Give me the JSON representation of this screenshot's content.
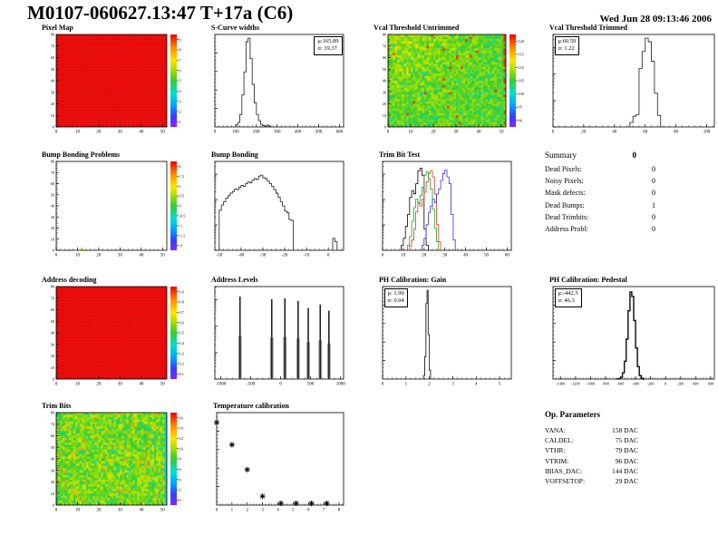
{
  "header": {
    "title": "M0107-060627.13:47 T+17a (C6)",
    "date": "Wed Jun 28 09:13:46 2006"
  },
  "summary": {
    "title": "Summary",
    "total": "0",
    "rows": [
      {
        "label": "Dead Pixels:",
        "value": "0"
      },
      {
        "label": "Noisy Pixels:",
        "value": "0"
      },
      {
        "label": "Mask defects:",
        "value": "0"
      },
      {
        "label": "Dead Bumps:",
        "value": "1"
      },
      {
        "label": "Dead Trimbits:",
        "value": "0"
      },
      {
        "label": "Address Probl:",
        "value": "0"
      }
    ]
  },
  "op_parameters": {
    "title": "Op. Parameters",
    "rows": [
      {
        "label": "VANA:",
        "value": "158 DAC"
      },
      {
        "label": "CALDEL:",
        "value": "75 DAC"
      },
      {
        "label": "VTHR:",
        "value": "79 DAC"
      },
      {
        "label": "VTRIM:",
        "value": "96 DAC"
      },
      {
        "label": "IBIAS_DAC:",
        "value": "144 DAC"
      },
      {
        "label": "VOFFSETOP:",
        "value": "29 DAC"
      }
    ]
  },
  "chart_data": [
    {
      "id": "pixel_map",
      "type": "heatmap",
      "title": "Pixel Map",
      "x": {
        "min": 0,
        "max": 52,
        "ticks": [
          0,
          10,
          20,
          30,
          40,
          50
        ]
      },
      "y": {
        "min": 0,
        "max": 80,
        "ticks": [
          0,
          10,
          20,
          30,
          40,
          50,
          60,
          70,
          80
        ]
      },
      "heatmap": {
        "pattern": "solid",
        "color": "#f90f0f",
        "seed": 1
      },
      "colorbar": {
        "labels": [
          "9",
          "8",
          "7",
          "6",
          "5",
          "4",
          "3",
          "2",
          "1"
        ]
      },
      "note": "uniform red map: all 4160 pixels responding"
    },
    {
      "id": "scurve_widths",
      "type": "hist",
      "title": "S-Curve widths",
      "y_scale": "linear",
      "x": {
        "min": 0,
        "max": 620,
        "ticks": [
          0,
          100,
          200,
          300,
          400,
          500,
          600
        ]
      },
      "series": [
        {
          "name": "scurve width distribution",
          "color": "#333333",
          "width": 0.9,
          "x_start": 100,
          "bin_width": 10,
          "heights": [
            0.02,
            0.05,
            0.14,
            0.36,
            0.62,
            0.96,
            1.0,
            0.77,
            0.48,
            0.27,
            0.14,
            0.07,
            0.03,
            0.015,
            0.01,
            0.02,
            0.01,
            0
          ]
        }
      ],
      "stats": {
        "pos": "tr",
        "lines": [
          "μ:165.89",
          "σ: 19.37"
        ]
      }
    },
    {
      "id": "vcal_untrimmed",
      "type": "heatmap",
      "title": "Vcal Threshold Untrimmed",
      "x": {
        "min": 0,
        "max": 52,
        "ticks": [
          0,
          10,
          20,
          30,
          40,
          50
        ]
      },
      "y": {
        "min": 0,
        "max": 80,
        "ticks": [
          0,
          10,
          20,
          30,
          40,
          50,
          60,
          70,
          80
        ]
      },
      "heatmap": {
        "pattern": "noise",
        "base": 0.52,
        "spread": 0.1,
        "warm_topleft": 0.14,
        "speck": 0.012,
        "speck_value": 0.93,
        "cool_speck": 0.012,
        "cool_value": 0.36,
        "right_col": "red",
        "seed": 5
      },
      "colorbar": {
        "labels": [
          "120",
          "115",
          "110",
          "105",
          "100",
          "95",
          "90"
        ]
      },
      "note": "threshold map ~100 VCal, warmer top-left, red right edge column"
    },
    {
      "id": "vcal_trimmed",
      "type": "hist",
      "title": "Vcal Threshold Trimmed",
      "y_scale": "log",
      "x": {
        "min": 0,
        "max": 105,
        "ticks": [
          0,
          20,
          40,
          60,
          80,
          100
        ]
      },
      "series": [
        {
          "name": "trimmed threshold distribution",
          "color": "#333333",
          "width": 0.9,
          "x_start": 50,
          "bin_width": 2,
          "heights": [
            0.05,
            0.12,
            0.14,
            0.66,
            0.85,
            1.0,
            0.96,
            0.74,
            0.38,
            0.13,
            0
          ]
        }
      ],
      "stats": {
        "pos": "tl",
        "lines": [
          "μ:60.59",
          "σ: 1.22"
        ]
      }
    },
    {
      "id": "bump_problems",
      "type": "heatmap",
      "title": "Bump Bonding Problems",
      "x": {
        "min": 0,
        "max": 52,
        "ticks": [
          0,
          10,
          20,
          30,
          40,
          50
        ]
      },
      "y": {
        "min": 0,
        "max": 80,
        "ticks": [
          0,
          10,
          20,
          30,
          40,
          50,
          60,
          70,
          80
        ]
      },
      "heatmap": {
        "pattern": "empty",
        "dots": [
          {
            "x": 12,
            "y": 1,
            "color": "#ffe400"
          }
        ],
        "seed": 3
      },
      "colorbar": {
        "labels": [
          "2",
          "1.5",
          "1",
          "0.5",
          "0",
          "-0.5",
          "-1",
          "-1.5",
          "-2"
        ]
      },
      "note": "one defective bump near column 12, row 0"
    },
    {
      "id": "bump_bonding",
      "type": "hist",
      "title": "Bump Bonding",
      "y_scale": "log",
      "x": {
        "min": -52,
        "max": 7,
        "ticks": [
          -50,
          -40,
          -30,
          -20,
          -10,
          0
        ]
      },
      "series": [
        {
          "name": "bump bonding test signal",
          "color": "#333333",
          "width": 0.9,
          "x_start": -50,
          "bin_width": 1,
          "heights": [
            0.47,
            0.53,
            0.57,
            0.61,
            0.64,
            0.67,
            0.69,
            0.72,
            0.71,
            0.74,
            0.76,
            0.75,
            0.78,
            0.8,
            0.79,
            0.82,
            0.84,
            0.83,
            0.87,
            0.88,
            0.85,
            0.84,
            0.81,
            0.78,
            0.75,
            0.71,
            0.67,
            0.62,
            0.57,
            0.52,
            0.46,
            0.44,
            0.36,
            0.35,
            0,
            0,
            0,
            0,
            0,
            0,
            0,
            0,
            0,
            0,
            0,
            0,
            0,
            0,
            0,
            0,
            0,
            0,
            0.14,
            0.1,
            0
          ]
        }
      ]
    },
    {
      "id": "trim_bit_test",
      "type": "hist",
      "title": "Trim Bit Test",
      "y_scale": "log",
      "x": {
        "min": 0,
        "max": 62,
        "ticks": [
          0,
          10,
          20,
          30,
          40,
          50,
          60
        ]
      },
      "series": [
        {
          "name": "trim bit 1",
          "color": "#000000",
          "width": 0.8,
          "x_start": 9,
          "bin_width": 1,
          "heights": [
            0.06,
            0.14,
            0.28,
            0.42,
            0.62,
            0.7,
            0.66,
            0.78,
            0.93,
            0.96,
            0.88,
            0.25,
            0.06
          ]
        },
        {
          "name": "trim bit 2",
          "color": "#e83030",
          "width": 0.8,
          "x_start": 13,
          "bin_width": 1,
          "heights": [
            0.05,
            0.12,
            0.25,
            0.45,
            0.55,
            0.52,
            0.6,
            0.68,
            0.8,
            0.9,
            0.93,
            0.86,
            0.66,
            0.3,
            0.1
          ]
        },
        {
          "name": "trim bit 3",
          "color": "#18a818",
          "width": 0.8,
          "x_start": 12,
          "bin_width": 1,
          "heights": [
            0.06,
            0.16,
            0.34,
            0.5,
            0.6,
            0.56,
            0.64,
            0.74,
            0.88,
            0.92,
            0.84,
            0.72,
            0.48,
            0.26,
            0.1
          ]
        },
        {
          "name": "trim bit 4",
          "color": "#3030e8",
          "width": 0.8,
          "x_start": 19,
          "bin_width": 1,
          "heights": [
            0.06,
            0.14,
            0.3,
            0.44,
            0.52,
            0.6,
            0.56,
            0.66,
            0.72,
            0.82,
            0.9,
            0.94,
            0.86,
            0.78,
            0.42,
            0.12
          ]
        }
      ]
    },
    {
      "id": "address_decoding",
      "type": "heatmap",
      "title": "Address decoding",
      "x": {
        "min": 0,
        "max": 52,
        "ticks": [
          0,
          10,
          20,
          30,
          40,
          50
        ]
      },
      "y": {
        "min": 0,
        "max": 80,
        "ticks": [
          0,
          10,
          20,
          30,
          40,
          50,
          60,
          70,
          80
        ]
      },
      "heatmap": {
        "pattern": "solid",
        "color": "#f90f0f",
        "seed": 2
      },
      "colorbar": {
        "labels": [
          "0.9",
          "0.8",
          "0.7",
          "0.6",
          "0.5",
          "0.4",
          "0.3",
          "0.2",
          "0.1"
        ]
      },
      "note": "uniform red map: all pixel addresses decoded correctly"
    },
    {
      "id": "address_levels",
      "type": "spikes",
      "title": "Address Levels",
      "y_scale": "log",
      "x": {
        "min": -1100,
        "max": 1050,
        "ticks": [
          -1000,
          -500,
          0,
          500,
          1000
        ]
      },
      "spikes": [
        {
          "x": -680,
          "h": 0.93
        },
        {
          "x": -150,
          "h": 0.9
        },
        {
          "x": 70,
          "h": 0.91
        },
        {
          "x": 290,
          "h": 0.88
        },
        {
          "x": 460,
          "h": 0.8
        },
        {
          "x": 660,
          "h": 0.84
        },
        {
          "x": 805,
          "h": 0.77
        }
      ],
      "note": "ultrablack level plus six well separated address levels"
    },
    {
      "id": "ph_gain",
      "type": "hist",
      "title": "PH Calibration: Gain",
      "y_scale": "linear",
      "x": {
        "min": 0,
        "max": 5.5,
        "ticks": [
          0,
          1,
          2,
          3,
          4,
          5
        ]
      },
      "series": [
        {
          "name": "gain distribution",
          "color": "#333333",
          "width": 1.0,
          "x_start": 1.75,
          "bin_width": 0.05,
          "heights": [
            0.04,
            0.25,
            0.85,
            1.0,
            0.5,
            0.1,
            0
          ]
        }
      ],
      "stats": {
        "pos": "tl",
        "lines": [
          "μ: 1.90",
          "σ: 0.04"
        ]
      }
    },
    {
      "id": "ph_pedestal",
      "type": "hist",
      "title": "PH Calibration: Pedestal",
      "y_scale": "linear",
      "x": {
        "min": -1500,
        "max": 650,
        "ticks": [
          -1400,
          -1200,
          -1000,
          -800,
          -600,
          -400,
          -200,
          0,
          200,
          400,
          600
        ]
      },
      "series": [
        {
          "name": "pedestal distribution",
          "color": "#1a1a1a",
          "width": 1.5,
          "x_start": -650,
          "bin_width": 25,
          "heights": [
            0.001,
            0.004,
            0.02,
            0.07,
            0.2,
            0.45,
            0.77,
            0.98,
            0.93,
            0.66,
            0.35,
            0.14,
            0.04,
            0.01,
            0
          ]
        }
      ],
      "stats": {
        "pos": "tl",
        "lines": [
          "μ:-442.5",
          "σ: 46.3"
        ]
      }
    },
    {
      "id": "trim_bits",
      "type": "heatmap",
      "title": "Trim Bits",
      "x": {
        "min": 0,
        "max": 52,
        "ticks": [
          0,
          10,
          20,
          30,
          40,
          50
        ]
      },
      "y": {
        "min": 0,
        "max": 80,
        "ticks": [
          0,
          10,
          20,
          30,
          40,
          50,
          60,
          70,
          80
        ]
      },
      "heatmap": {
        "pattern": "noise",
        "base": 0.55,
        "spread": 0.13,
        "speck": 0.03,
        "speck_value": 0.8,
        "cool_speck": 0.008,
        "cool_value": 0.34,
        "right_col": "cyan",
        "seed": 9
      },
      "colorbar": {
        "labels": [
          "16",
          "14",
          "12",
          "10",
          "8",
          "6",
          "4",
          "2",
          "0"
        ]
      },
      "note": "trim bit values ~7-9, cyan right edge column"
    },
    {
      "id": "temperature",
      "type": "scatter",
      "title": "Temperature calibration",
      "y_scale": "linear",
      "x": {
        "min": 0,
        "max": 8.3,
        "ticks": [
          0,
          1,
          2,
          3,
          4,
          5,
          6,
          7,
          8
        ]
      },
      "points": [
        [
          0,
          0.93
        ],
        [
          1,
          0.68
        ],
        [
          2,
          0.4
        ],
        [
          3,
          0.1
        ],
        [
          4.2,
          0.02
        ],
        [
          5.2,
          0.02
        ],
        [
          6.2,
          0.02
        ],
        [
          7.2,
          0.02
        ]
      ],
      "note": "ADC response falling with temperature range setting; star markers"
    }
  ]
}
